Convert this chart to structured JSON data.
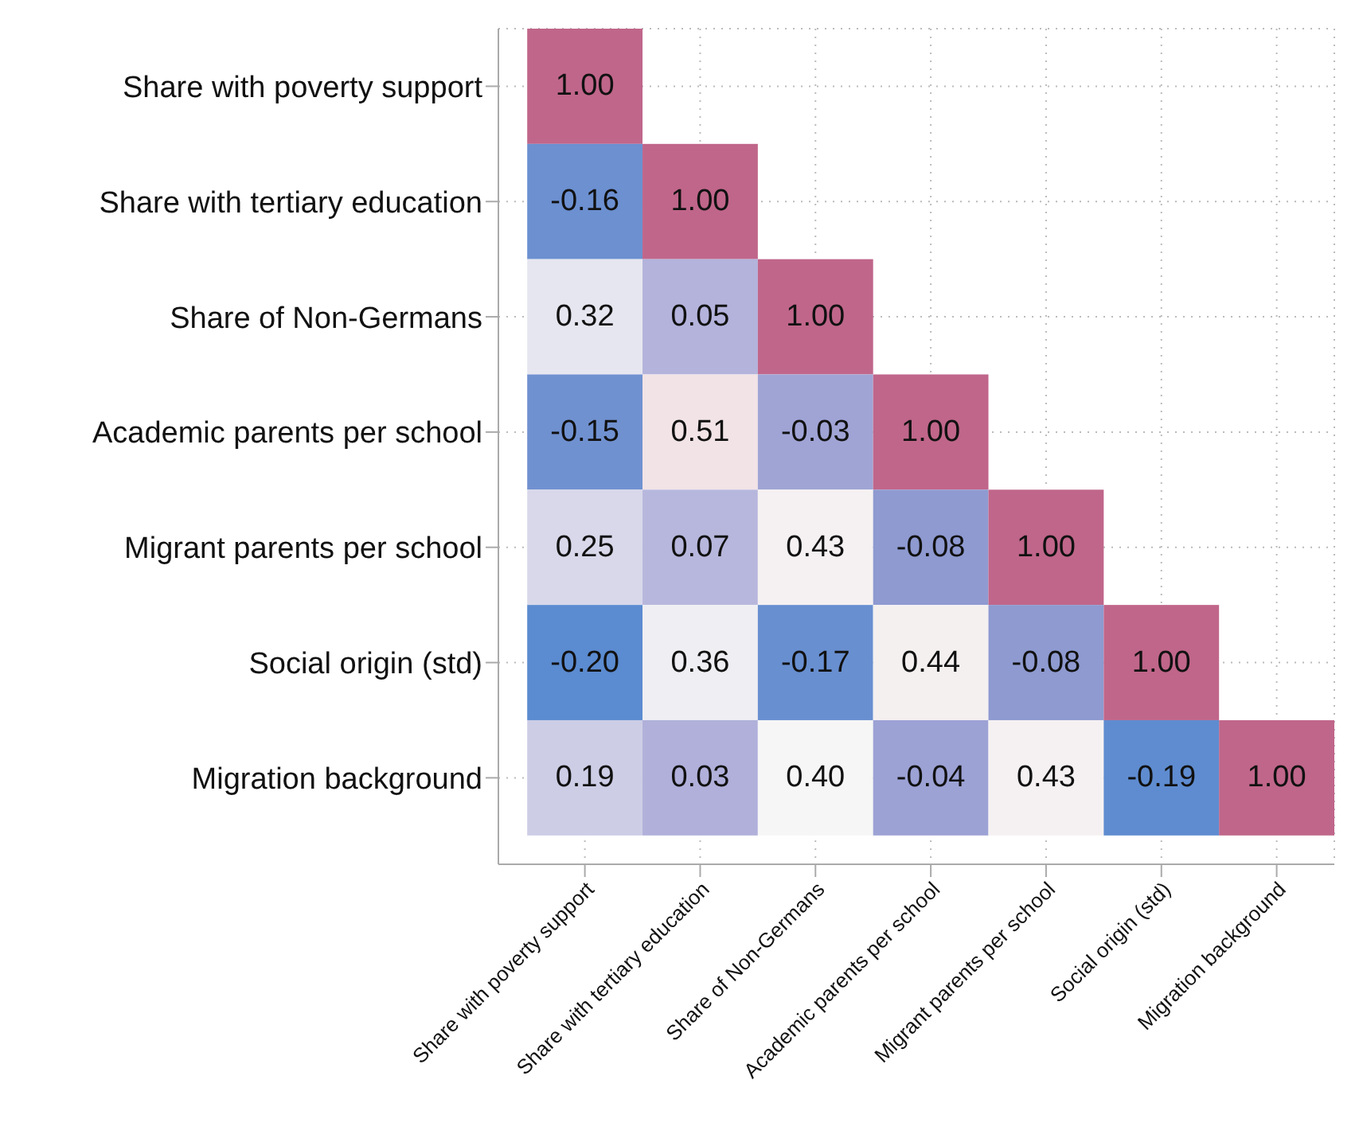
{
  "chart_data": {
    "type": "heatmap",
    "categories": [
      "Share with poverty support",
      "Share with tertiary education",
      "Share of Non-Germans",
      "Academic parents per school",
      "Migrant parents per school",
      "Social origin (std)",
      "Migration background"
    ],
    "y_categories": [
      "Share with poverty support",
      "Share with tertiary education",
      "Share of Non-Germans",
      "Academic parents per school",
      "Migrant parents per school",
      "Social origin (std)",
      "Migration background"
    ],
    "cells": [
      [
        1,
        null,
        null,
        null,
        null,
        null,
        null
      ],
      [
        -0.16,
        1,
        null,
        null,
        null,
        null,
        null
      ],
      [
        0.32,
        0.05,
        1,
        null,
        null,
        null,
        null
      ],
      [
        -0.15,
        0.51,
        -0.03,
        1,
        null,
        null,
        null
      ],
      [
        0.25,
        0.07,
        0.43,
        -0.08,
        1,
        null,
        null
      ],
      [
        -0.2,
        0.36,
        -0.17,
        0.44,
        -0.08,
        1,
        null
      ],
      [
        0.19,
        0.03,
        0.4,
        -0.04,
        0.43,
        -0.19,
        1
      ]
    ],
    "cell_labels": [
      [
        "1.00",
        null,
        null,
        null,
        null,
        null,
        null
      ],
      [
        "-0.16",
        "1.00",
        null,
        null,
        null,
        null,
        null
      ],
      [
        "0.32",
        "0.05",
        "1.00",
        null,
        null,
        null,
        null
      ],
      [
        "-0.15",
        "0.51",
        "-0.03",
        "1.00",
        null,
        null,
        null
      ],
      [
        "0.25",
        "0.07",
        "0.43",
        "-0.08",
        "1.00",
        null,
        null
      ],
      [
        "-0.20",
        "0.36",
        "-0.17",
        "0.44",
        "-0.08",
        "1.00",
        null
      ],
      [
        "0.19",
        "0.03",
        "0.40",
        "-0.04",
        "0.43",
        "-0.19",
        "1.00"
      ]
    ],
    "grid": true
  }
}
